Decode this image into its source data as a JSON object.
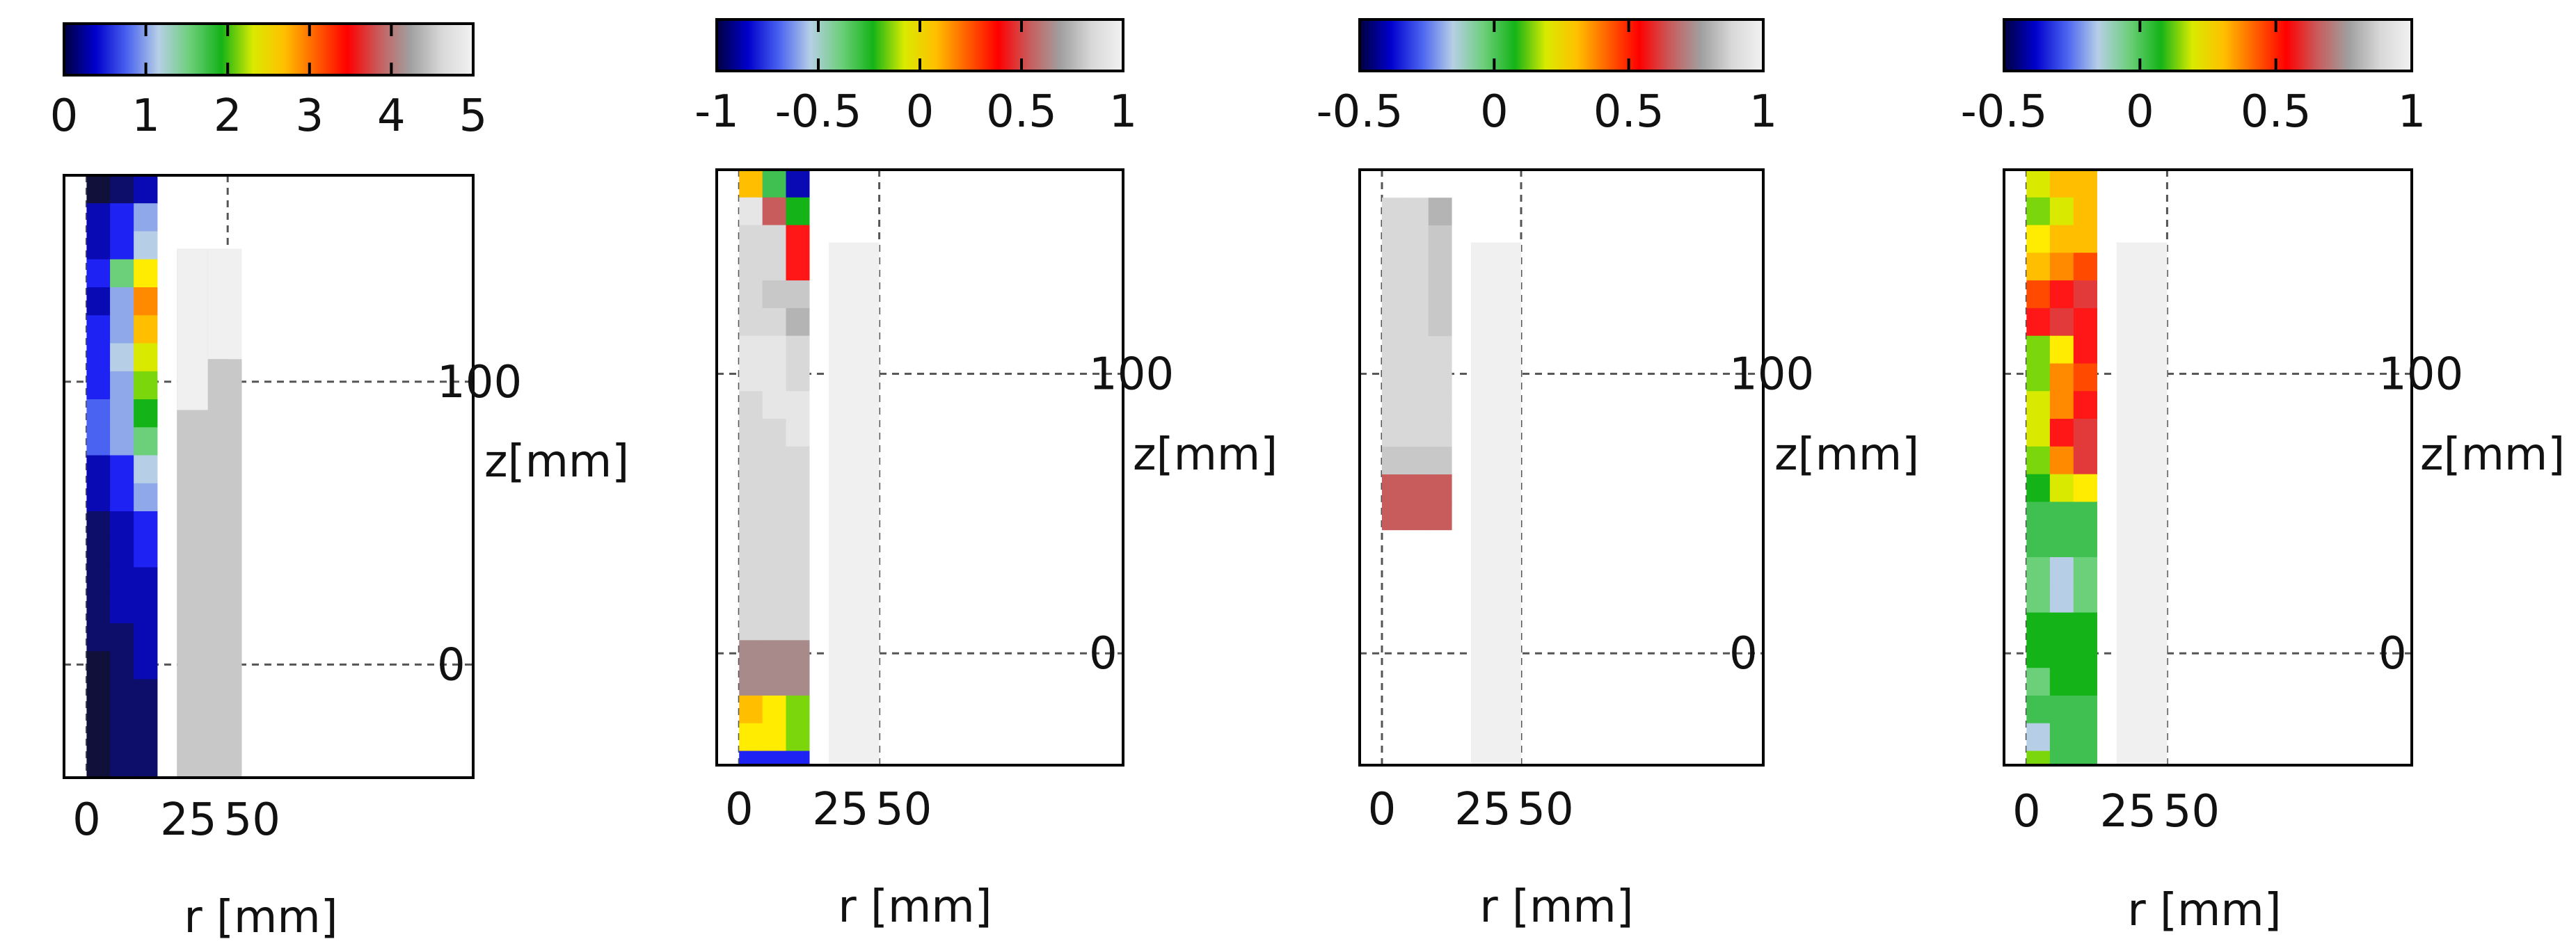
{
  "palette": [
    "#10103a",
    "#0d0d6a",
    "#0a0ab5",
    "#1e22f2",
    "#4a63f0",
    "#8ea8ea",
    "#b6cfe6",
    "#6ccf7a",
    "#40c050",
    "#14b318",
    "#7bd60c",
    "#d9ea00",
    "#ffec00",
    "#ffbe00",
    "#ff8a00",
    "#ff4a00",
    "#ff1616",
    "#e23a3a",
    "#c85c5c",
    "#a88a8a",
    "#b4b4b4",
    "#c8c8c8",
    "#d8d8d8",
    "#e6e6e6",
    "#f0f0f0"
  ],
  "colorbar_stops": [
    "#000040",
    "#0000cc",
    "#4a63f0",
    "#b6cfe6",
    "#6ccf7a",
    "#14b318",
    "#d9ea00",
    "#ffc000",
    "#ff6000",
    "#ff0000",
    "#c85c5c",
    "#a0a0a0",
    "#d8d8d8",
    "#f2f2f2"
  ],
  "chart_data": [
    {
      "type": "heatmap",
      "colorbar": {
        "min": 0,
        "max": 5,
        "ticks": [
          "0",
          "1",
          "2",
          "3",
          "4",
          "5"
        ]
      },
      "xlabel": "r [mm]",
      "ylabel": "z[mm]",
      "x_ticks": [
        "0",
        "25",
        "50"
      ],
      "y_ticks": [
        {
          "value": 0,
          "label": "0"
        },
        {
          "value": 100,
          "label": "100"
        }
      ],
      "xlim": [
        -8,
        137
      ],
      "ylim": [
        -40,
        173
      ],
      "bins": {
        "r_edges": [
          0,
          8.3,
          16.7,
          25
        ],
        "z_top": 173,
        "z_step": 9.9,
        "columns": [
          [
            0,
            2,
            2,
            3,
            2,
            3,
            3,
            3,
            4,
            4,
            2,
            2,
            1,
            1,
            1,
            1,
            1,
            0,
            0,
            0,
            0,
            0,
            0,
            0,
            0,
            0,
            0,
            0,
            0,
            0,
            0,
            0,
            0,
            0,
            0,
            0,
            0
          ],
          [
            1,
            3,
            3,
            7,
            5,
            5,
            6,
            5,
            5,
            5,
            3,
            3,
            2,
            2,
            2,
            2,
            1,
            1,
            1,
            1,
            1,
            1,
            1,
            1,
            0,
            1,
            0,
            0,
            0,
            0,
            0,
            0,
            0,
            0,
            0,
            0,
            0
          ],
          [
            2,
            5,
            6,
            12,
            14,
            13,
            11,
            10,
            9,
            7,
            6,
            5,
            3,
            3,
            2,
            2,
            2,
            2,
            1,
            1,
            1,
            1,
            1,
            1,
            1,
            1,
            1,
            1,
            1,
            1,
            1,
            1,
            1,
            1,
            1,
            1,
            1
          ]
        ]
      },
      "regions": [
        {
          "r": [
            32,
            50
          ],
          "z": [
            -40,
            147
          ],
          "color": 21
        },
        {
          "r": [
            32,
            43
          ],
          "z": [
            90,
            147
          ],
          "color": 24
        },
        {
          "r": [
            43,
            55
          ],
          "z": [
            108,
            147
          ],
          "color": 24
        },
        {
          "r": [
            43,
            55
          ],
          "z": [
            -40,
            108
          ],
          "color": 21
        }
      ]
    },
    {
      "type": "heatmap",
      "colorbar": {
        "min": -1,
        "max": 1,
        "ticks": [
          "-1",
          "-0.5",
          "0",
          "0.5",
          "1"
        ]
      },
      "xlabel": "r [mm]",
      "ylabel": "z[mm]",
      "x_ticks": [
        "0",
        "25",
        "50"
      ],
      "y_ticks": [
        {
          "value": 0,
          "label": "0"
        },
        {
          "value": 100,
          "label": "100"
        }
      ],
      "xlim": [
        -8,
        137
      ],
      "ylim": [
        -40,
        173
      ],
      "bins": {
        "r_edges": [
          0,
          8.3,
          16.7,
          25
        ],
        "z_top": 173,
        "z_step": 9.9,
        "columns": [
          [
            13,
            23,
            22,
            22,
            22,
            22,
            23,
            23,
            22,
            22,
            22,
            22,
            22,
            22,
            22,
            22,
            22,
            19,
            19,
            13,
            12,
            3,
            3,
            1,
            1,
            1,
            1,
            1,
            1,
            1,
            11,
            11,
            22,
            22,
            23,
            23,
            23,
            23
          ],
          [
            8,
            18,
            22,
            22,
            21,
            22,
            23,
            23,
            23,
            22,
            22,
            22,
            22,
            22,
            22,
            22,
            22,
            19,
            19,
            12,
            12,
            3,
            3,
            1,
            1,
            1,
            1,
            1,
            1,
            1,
            11,
            11,
            22,
            22,
            23,
            23,
            23,
            23
          ],
          [
            2,
            9,
            16,
            16,
            21,
            20,
            22,
            22,
            23,
            23,
            22,
            22,
            22,
            22,
            22,
            22,
            22,
            19,
            19,
            10,
            10,
            3,
            3,
            1,
            1,
            1,
            1,
            1,
            1,
            1,
            10,
            10,
            21,
            21,
            23,
            23,
            23,
            23
          ]
        ]
      },
      "regions": [
        {
          "r": [
            32,
            50
          ],
          "z": [
            -40,
            147
          ],
          "color": 24
        }
      ]
    },
    {
      "type": "heatmap",
      "colorbar": {
        "min": -0.5,
        "max": 1,
        "ticks": [
          "-0.5",
          "0",
          "0.5",
          "1"
        ]
      },
      "xlabel": "r [mm]",
      "ylabel": "z[mm]",
      "x_ticks": [
        "0",
        "25",
        "50"
      ],
      "y_ticks": [
        {
          "value": 0,
          "label": "0"
        },
        {
          "value": 100,
          "label": "100"
        }
      ],
      "xlim": [
        -8,
        137
      ],
      "ylim": [
        -40,
        173
      ],
      "bins": {
        "r_edges": [
          0,
          8.3,
          16.7,
          25
        ],
        "z_top": 163,
        "z_step": 9.9,
        "columns": [
          [
            22,
            22,
            22,
            22,
            22,
            22,
            22,
            22,
            22,
            21,
            18,
            18,
            null,
            null,
            null,
            null,
            null,
            null,
            null,
            null,
            null,
            null,
            null,
            null,
            null,
            null,
            22,
            22,
            22,
            22,
            22,
            22
          ],
          [
            22,
            22,
            22,
            22,
            22,
            22,
            22,
            22,
            22,
            21,
            18,
            18,
            null,
            null,
            null,
            null,
            null,
            null,
            null,
            null,
            null,
            null,
            null,
            null,
            null,
            null,
            22,
            22,
            22,
            22,
            22,
            22
          ],
          [
            20,
            21,
            21,
            21,
            21,
            22,
            22,
            22,
            22,
            21,
            18,
            18,
            null,
            null,
            null,
            null,
            null,
            null,
            null,
            null,
            null,
            null,
            null,
            null,
            null,
            null,
            21,
            22,
            22,
            22,
            22,
            22
          ]
        ]
      },
      "regions": [
        {
          "r": [
            32,
            50
          ],
          "z": [
            -40,
            147
          ],
          "color": 24
        }
      ]
    },
    {
      "type": "heatmap",
      "colorbar": {
        "min": -0.5,
        "max": 1,
        "ticks": [
          "-0.5",
          "0",
          "0.5",
          "1"
        ]
      },
      "xlabel": "r [mm]",
      "ylabel": "z[mm]",
      "x_ticks": [
        "0",
        "25",
        "50"
      ],
      "y_ticks": [
        {
          "value": 0,
          "label": "0"
        },
        {
          "value": 100,
          "label": "100"
        }
      ],
      "xlim": [
        -8,
        137
      ],
      "ylim": [
        -40,
        173
      ],
      "bins": {
        "r_edges": [
          0,
          8.3,
          16.7,
          25
        ],
        "z_top": 173,
        "z_step": 9.9,
        "columns": [
          [
            11,
            10,
            12,
            13,
            15,
            16,
            10,
            10,
            11,
            11,
            10,
            9,
            8,
            8,
            7,
            7,
            9,
            9,
            7,
            8,
            6,
            10,
            11,
            8
          ],
          [
            13,
            11,
            13,
            14,
            16,
            17,
            12,
            14,
            14,
            16,
            14,
            11,
            8,
            8,
            6,
            6,
            9,
            9,
            9,
            8,
            8,
            8,
            10,
            11
          ],
          [
            13,
            13,
            13,
            15,
            17,
            16,
            16,
            15,
            16,
            17,
            17,
            12,
            8,
            8,
            7,
            7,
            9,
            9,
            9,
            8,
            8,
            8,
            9,
            9
          ]
        ]
      },
      "regions": [
        {
          "r": [
            32,
            50
          ],
          "z": [
            -40,
            147
          ],
          "color": 24
        }
      ]
    }
  ]
}
